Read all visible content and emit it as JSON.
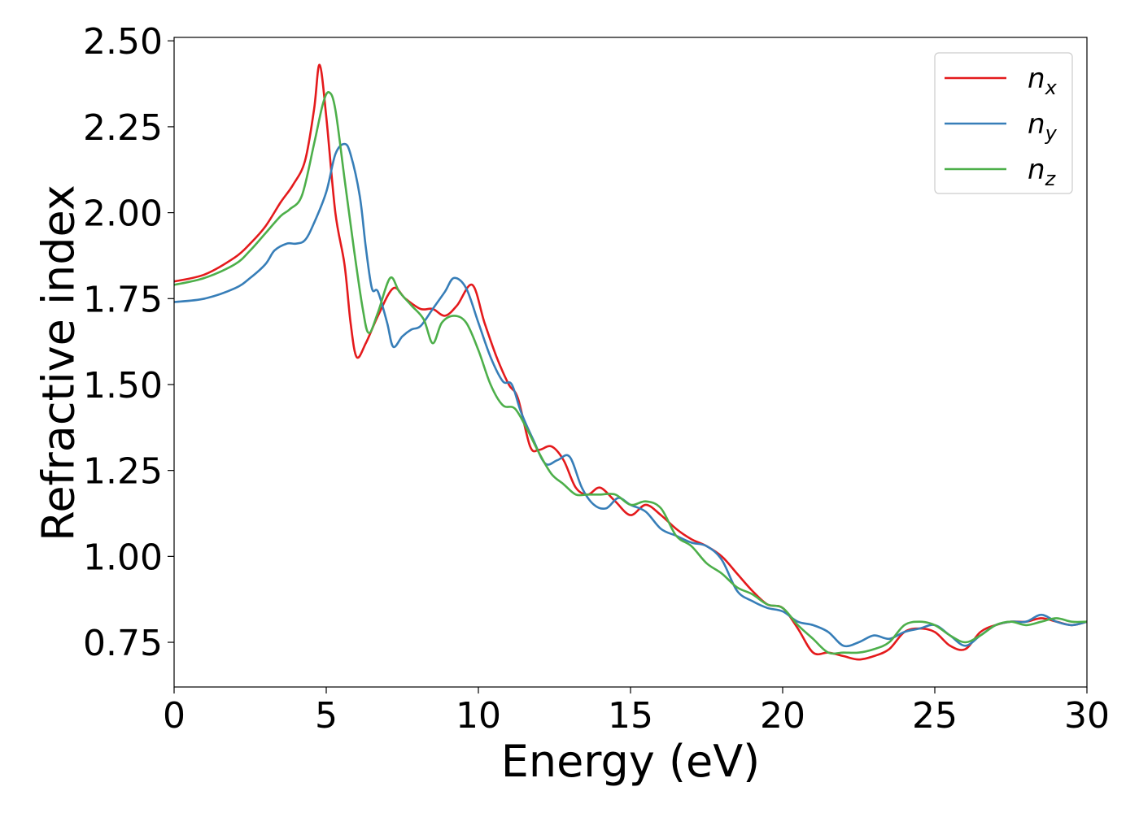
{
  "chart_data": {
    "type": "line",
    "xlabel": "Energy (eV)",
    "ylabel": "Refractive index",
    "xlim": [
      0,
      30
    ],
    "ylim": [
      0.62,
      2.51
    ],
    "xticks": [
      0,
      5,
      10,
      15,
      20,
      25,
      30
    ],
    "xtick_labels": [
      "0",
      "5",
      "10",
      "15",
      "20",
      "25",
      "30"
    ],
    "yticks": [
      0.75,
      1.0,
      1.25,
      1.5,
      1.75,
      2.0,
      2.25,
      2.5
    ],
    "ytick_labels": [
      "0.75",
      "1.00",
      "1.25",
      "1.50",
      "1.75",
      "2.00",
      "2.25",
      "2.50"
    ],
    "grid": false,
    "legend_position": "top-right",
    "series": [
      {
        "name": "n_x",
        "label_base": "n",
        "label_sub": "x",
        "color": "#e41a1c",
        "x": [
          0,
          1,
          2,
          2.5,
          3,
          3.5,
          3.9,
          4.3,
          4.6,
          4.78,
          5.0,
          5.3,
          5.6,
          5.8,
          6.0,
          6.3,
          6.7,
          7.2,
          7.6,
          8.1,
          8.5,
          8.9,
          9.3,
          9.8,
          10.2,
          10.6,
          11.0,
          11.3,
          11.7,
          12.0,
          12.4,
          12.8,
          13.2,
          13.6,
          14.0,
          14.5,
          15.0,
          15.5,
          16.0,
          16.5,
          17.0,
          17.5,
          18.0,
          18.5,
          19.0,
          19.5,
          20.0,
          20.5,
          21.0,
          21.5,
          22.0,
          22.5,
          23.0,
          23.5,
          24.0,
          24.5,
          25.0,
          25.5,
          26.0,
          26.5,
          27.0,
          27.5,
          28.0,
          28.5,
          29.0,
          29.5,
          30.0
        ],
        "y": [
          1.8,
          1.82,
          1.87,
          1.91,
          1.96,
          2.03,
          2.08,
          2.15,
          2.3,
          2.43,
          2.28,
          2.0,
          1.85,
          1.68,
          1.58,
          1.62,
          1.7,
          1.78,
          1.75,
          1.72,
          1.72,
          1.7,
          1.73,
          1.79,
          1.68,
          1.58,
          1.5,
          1.46,
          1.32,
          1.31,
          1.32,
          1.28,
          1.2,
          1.18,
          1.2,
          1.16,
          1.12,
          1.15,
          1.12,
          1.08,
          1.05,
          1.03,
          1.0,
          0.95,
          0.9,
          0.86,
          0.85,
          0.79,
          0.72,
          0.72,
          0.71,
          0.7,
          0.71,
          0.73,
          0.78,
          0.79,
          0.78,
          0.74,
          0.73,
          0.78,
          0.8,
          0.81,
          0.81,
          0.82,
          0.81,
          0.8,
          0.81
        ]
      },
      {
        "name": "n_y",
        "label_base": "n",
        "label_sub": "y",
        "color": "#377eb8",
        "x": [
          0,
          1,
          2,
          2.5,
          3,
          3.3,
          3.7,
          4.0,
          4.3,
          4.6,
          5.0,
          5.3,
          5.6,
          5.8,
          6.1,
          6.3,
          6.5,
          6.7,
          7.0,
          7.2,
          7.5,
          7.8,
          8.1,
          8.5,
          8.9,
          9.2,
          9.6,
          10.0,
          10.4,
          10.8,
          11.1,
          11.4,
          11.8,
          12.2,
          12.6,
          13.0,
          13.4,
          13.8,
          14.2,
          14.6,
          15.0,
          15.5,
          16.0,
          16.5,
          17.0,
          17.5,
          18.0,
          18.5,
          19.0,
          19.5,
          20.0,
          20.5,
          21.0,
          21.5,
          22.0,
          22.5,
          23.0,
          23.5,
          24.0,
          24.5,
          25.0,
          25.5,
          26.0,
          26.5,
          27.0,
          27.5,
          28.0,
          28.5,
          29.0,
          29.5,
          30.0
        ],
        "y": [
          1.74,
          1.75,
          1.78,
          1.81,
          1.85,
          1.89,
          1.91,
          1.91,
          1.92,
          1.97,
          2.06,
          2.17,
          2.2,
          2.17,
          2.05,
          1.9,
          1.78,
          1.77,
          1.68,
          1.61,
          1.64,
          1.66,
          1.67,
          1.72,
          1.77,
          1.81,
          1.78,
          1.68,
          1.58,
          1.51,
          1.5,
          1.42,
          1.34,
          1.27,
          1.28,
          1.29,
          1.2,
          1.15,
          1.14,
          1.17,
          1.15,
          1.13,
          1.08,
          1.06,
          1.04,
          1.03,
          0.99,
          0.9,
          0.87,
          0.85,
          0.84,
          0.81,
          0.8,
          0.78,
          0.74,
          0.75,
          0.77,
          0.76,
          0.78,
          0.79,
          0.8,
          0.77,
          0.74,
          0.77,
          0.8,
          0.81,
          0.81,
          0.83,
          0.81,
          0.8,
          0.81
        ]
      },
      {
        "name": "n_z",
        "label_base": "n",
        "label_sub": "z",
        "color": "#4daf4a",
        "x": [
          0,
          1,
          2,
          2.5,
          3,
          3.5,
          3.8,
          4.2,
          4.6,
          4.9,
          5.1,
          5.3,
          5.6,
          5.9,
          6.2,
          6.4,
          6.7,
          7.1,
          7.4,
          7.8,
          8.2,
          8.5,
          8.8,
          9.2,
          9.6,
          10.0,
          10.4,
          10.8,
          11.2,
          11.6,
          12.0,
          12.4,
          12.8,
          13.2,
          13.6,
          14.0,
          14.5,
          15.0,
          15.5,
          16.0,
          16.5,
          17.0,
          17.5,
          18.0,
          18.5,
          19.0,
          19.5,
          20.0,
          20.5,
          21.0,
          21.5,
          22.0,
          22.5,
          23.0,
          23.5,
          24.0,
          24.5,
          25.0,
          25.5,
          26.0,
          26.5,
          27.0,
          27.5,
          28.0,
          28.5,
          29.0,
          29.5,
          30.0
        ],
        "y": [
          1.79,
          1.81,
          1.85,
          1.89,
          1.94,
          1.99,
          2.01,
          2.05,
          2.2,
          2.32,
          2.35,
          2.3,
          2.1,
          1.9,
          1.72,
          1.65,
          1.71,
          1.81,
          1.77,
          1.73,
          1.69,
          1.62,
          1.68,
          1.7,
          1.68,
          1.6,
          1.5,
          1.44,
          1.43,
          1.37,
          1.3,
          1.24,
          1.21,
          1.18,
          1.18,
          1.18,
          1.18,
          1.15,
          1.16,
          1.14,
          1.06,
          1.03,
          0.98,
          0.95,
          0.91,
          0.89,
          0.86,
          0.85,
          0.8,
          0.76,
          0.72,
          0.72,
          0.72,
          0.73,
          0.75,
          0.8,
          0.81,
          0.8,
          0.77,
          0.75,
          0.77,
          0.8,
          0.81,
          0.8,
          0.81,
          0.82,
          0.81,
          0.81
        ]
      }
    ]
  }
}
